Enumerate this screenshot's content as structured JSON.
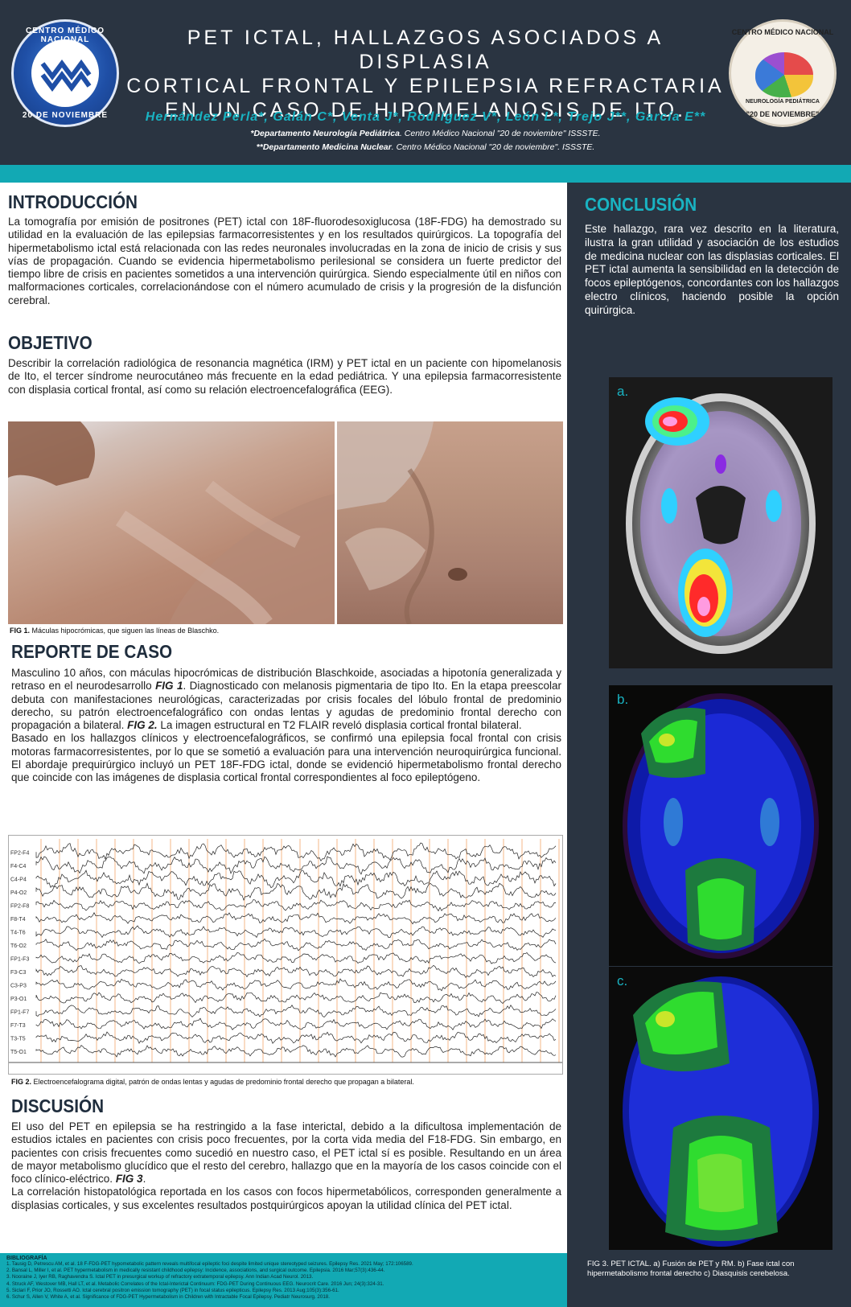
{
  "header": {
    "title_lines": [
      "PET ICTAL, HALLAZGOS ASOCIADOS A DISPLASIA",
      "CORTICAL FRONTAL Y EPILEPSIA REFRACTARIA",
      "EN UN CASO DE HIPOMELANOSIS DE ITO."
    ],
    "authors_lead": "Hernández Perla",
    "authors_rest": "*, Galán C*, Venta J*, Rodríguez V*, León L*, Trejo J**, García E**",
    "affil1_bold": "*Departamento Neurología Pediátrica",
    "affil1_rest": ". Centro Médico Nacional \"20 de noviembre\" ISSSTE.",
    "affil2_bold": "**Departamento Medicina Nuclear",
    "affil2_rest": ". Centro Médico Nacional \"20 de noviembre\". ISSSTE."
  },
  "logo_left": {
    "top_text": "CENTRO MÉDICO NACIONAL",
    "bottom_text": "20 DE NOVIEMBRE"
  },
  "logo_right": {
    "top_text": "CENTRO MÉDICO NACIONAL",
    "mid_text": "NEUROLOGÍA PEDIÁTRICA",
    "bottom_text": "\"20 DE NOVIEMBRE\""
  },
  "intro": {
    "heading": "INTRODUCCIÓN",
    "text": "La tomografía por emisión de positrones (PET) ictal con 18F-fluorodesoxiglucosa (18F-FDG) ha demostrado su utilidad en la evaluación de las epilepsias farmacorresistentes y en los resultados quirúrgicos. La topografía del hipermetabolismo ictal está relacionada con las redes neuronales involucradas en la zona de inicio de crisis y sus vías de propagación. Cuando se evidencia hipermetabolismo perilesional se considera un fuerte predictor del tiempo libre de crisis en pacientes sometidos a una intervención quirúrgica. Siendo especialmente útil en niños con malformaciones corticales, correlacionándose con el número acumulado de crisis y la progresión de la disfunción cerebral."
  },
  "objetivo": {
    "heading": "OBJETIVO",
    "text": "Describir la correlación radiológica de resonancia magnética (IRM) y PET ictal en un paciente con hipomelanosis de Ito, el tercer síndrome neurocutáneo más frecuente en la edad pediátrica. Y una epilepsia farmacorresistente con displasia cortical frontal, así como su relación electroencefalográfica (EEG)."
  },
  "fig1": {
    "label": "FIG 1.",
    "text": " Máculas hipocrómicas, que siguen las líneas de Blaschko."
  },
  "reporte": {
    "heading": "REPORTE DE CASO",
    "p1_a": "Masculino 10 años, con máculas hipocrómicas de distribución Blaschkoide, asociadas a hipotonía generalizada y retraso en el neurodesarrollo ",
    "p1_fig": "FIG 1",
    "p1_b": ". Diagnosticado con melanosis pigmentaria de tipo Ito. En la etapa preescolar debuta con manifestaciones neurológicas, caracterizadas por crisis focales del lóbulo frontal de predominio derecho, su patrón electroencefalográfico con ondas lentas y agudas de predominio frontal derecho con propagación a bilateral. ",
    "p1_fig2": "FIG 2.",
    "p1_c": " La imagen estructural en T2 FLAIR reveló displasia cortical frontal bilateral.",
    "p2": "Basado en los hallazgos clínicos y electroencefalográficos, se confirmó una epilepsia focal frontal con crisis motoras farmacorresistentes, por lo que se sometió a evaluación para una intervención neuroquirúrgica funcional. El abordaje prequirúrgico incluyó un PET 18F-FDG ictal, donde se evidenció hipermetabolismo frontal derecho que coincide con las imágenes de displasia cortical frontal correspondientes al foco epileptógeno."
  },
  "fig2": {
    "label": "FIG 2.",
    "text": " Electroencefalograma digital, patrón de ondas lentas y agudas de predominio frontal derecho que propagan a bilateral."
  },
  "eeg_channels": [
    "FP2-F4",
    "F4-C4",
    "C4-P4",
    "P4-O2",
    "FP2-F8",
    "F8-T4",
    "T4-T6",
    "T6-O2",
    "FP1-F3",
    "F3-C3",
    "C3-P3",
    "P3-O1",
    "FP1-F7",
    "F7-T3",
    "T3-T5",
    "T5-O1"
  ],
  "discusion": {
    "heading": "DISCUSIÓN",
    "p1_a": "El uso del PET en epilepsia se ha restringido a la fase interictal, debido a la dificultosa implementación de estudios ictales en pacientes con crisis poco frecuentes, por la corta vida media del F18-FDG. Sin embargo, en pacientes con crisis frecuentes como sucedió en nuestro caso, el PET ictal sí es posible. Resultando en un área de mayor metabolismo glucídico que el resto del cerebro, hallazgo que en la mayoría de los casos coincide con el foco clínico-eléctrico. ",
    "p1_fig": "FIG 3",
    "p1_b": ".",
    "p2": "La correlación histopatológica reportada en los casos con focos hipermetabólicos, corresponden generalmente a displasias corticales, y sus excelentes resultados postquirúrgicos apoyan la utilidad clínica del PET ictal."
  },
  "conclusion": {
    "heading": "CONCLUSIÓN",
    "text": "Este hallazgo, rara vez descrito en la literatura, ilustra la gran utilidad y asociación de los estudios de medicina nuclear con las displasias corticales. El PET ictal aumenta la sensibilidad en la detección de focos epileptógenos, concordantes con los hallazgos electro clínicos, haciendo posible la opción quirúrgica."
  },
  "scans": {
    "a_label": "a.",
    "b_label": "b.",
    "c_label": "c."
  },
  "fig3": {
    "text": "FIG 3. PET ICTAL. a) Fusión de PET y RM. b) Fase ictal con hipermetabolismo frontal derecho c) Diasquisis cerebelosa."
  },
  "bibliography": {
    "heading": "BIBLIOGRAFÍA",
    "items": [
      "1. Tausig D, Petrescu AM, et al. 18 F-FDG-PET hypometabolic pattern reveals multifocal epileptic foci despite limited unique stereotyped seizures. Epilepsy Res. 2021 May; 172:106589.",
      "2. Bansal L, Miller I, et al. PET hypermetabolism in medically resistant childhood epilepsy: Incidence, associations, and surgical outcome. Epilepsia. 2016 Mar;57(3):436-44.",
      "3. Nooraine J, Iyer RB, Raghavendra S. Ictal PET in presurgical workup of refractory extratemporal epilepsy. Ann Indian Acad Neurol. 2013.",
      "4. Struck AF, Westover MB, Hall LT, et al. Metabolic Correlates of the Ictal-Interictal Continuum: FDG-PET During Continuous EEG. Neurocrit Care. 2016 Jun; 24(3):324-31.",
      "5. Siclari F, Prior JO, Rossetti AO. Ictal cerebral positron emission tomography (PET) in focal status epilepticus. Epilepsy Res. 2013 Aug;105(3):356-61.",
      "6. Schur S, Allen V, White A, et al. Significance of FDG-PET Hypermetabolism in Children with Intractable Focal Epilepsy. Pediatr Neurosurg. 2018."
    ]
  }
}
